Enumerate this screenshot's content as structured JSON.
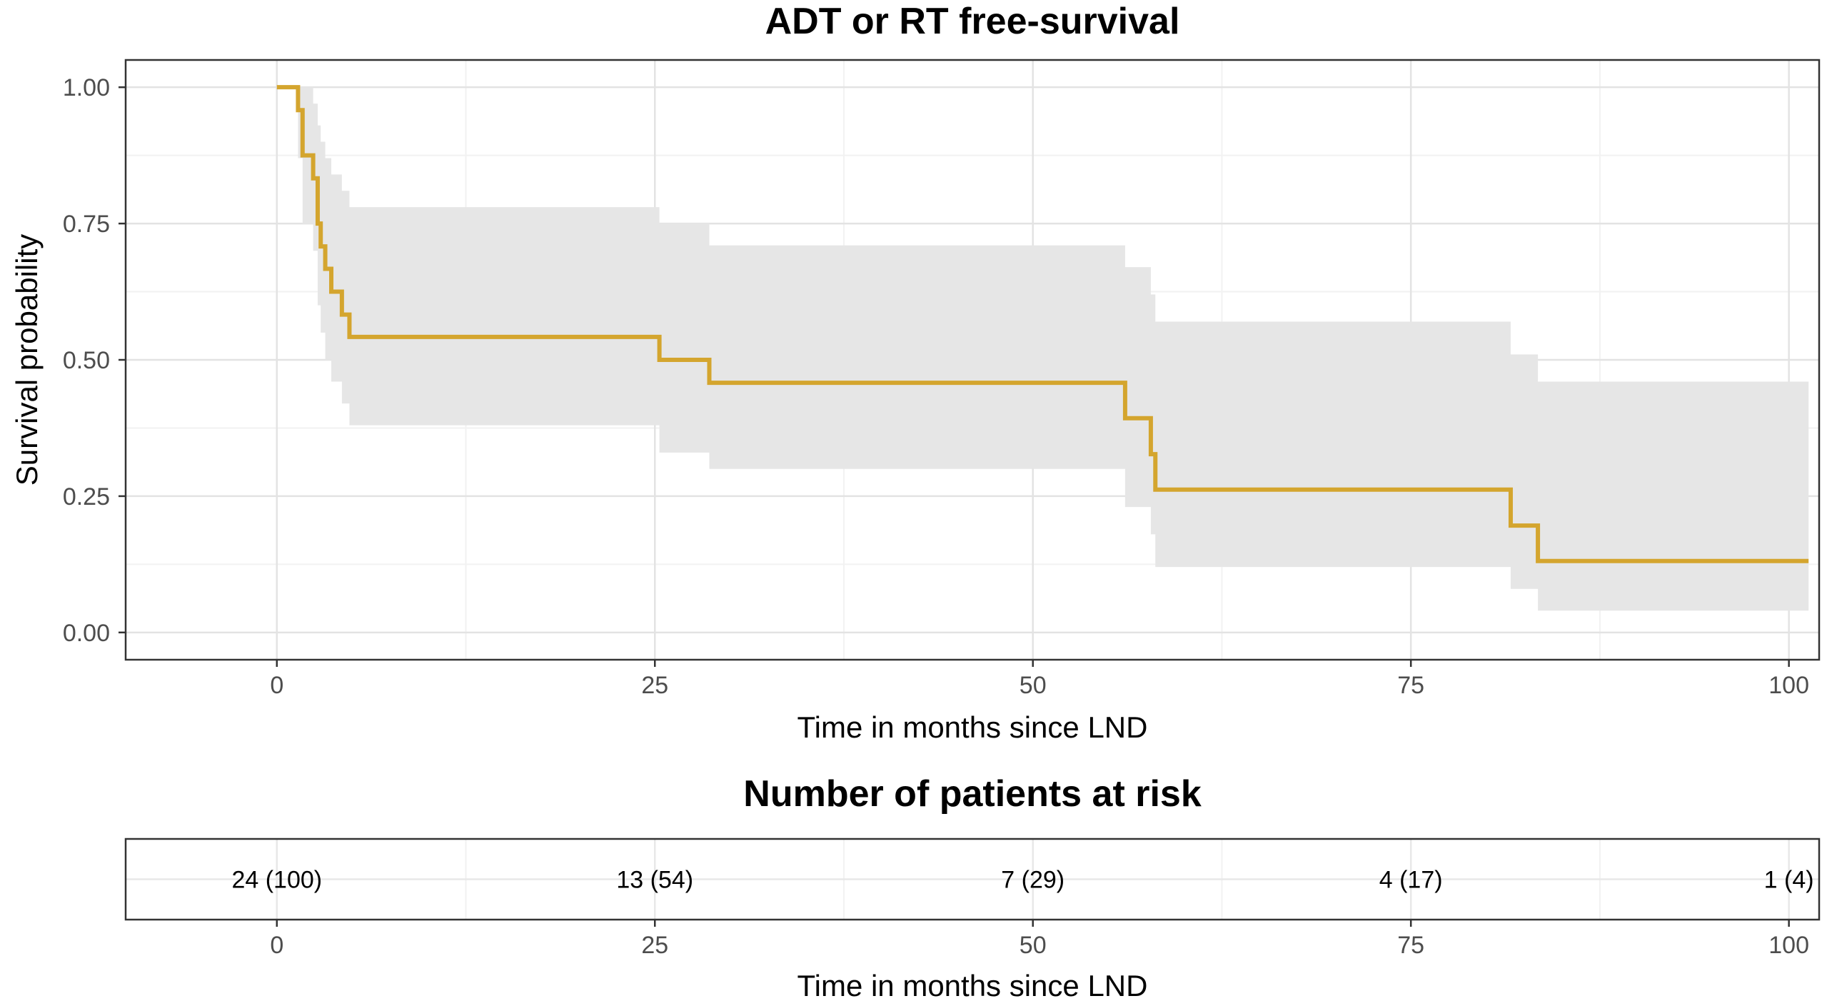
{
  "chart_data": [
    {
      "type": "line",
      "subtype": "kaplan-meier-step",
      "title": "ADT or RT free-survival",
      "xlabel": "Time in months since LND",
      "ylabel": "Survival probability",
      "xlim": [
        -10,
        102
      ],
      "ylim": [
        -0.05,
        1.05
      ],
      "x_ticks": [
        0,
        25,
        50,
        75,
        100
      ],
      "x_tick_labels": [
        "0",
        "25",
        "50",
        "75",
        "100"
      ],
      "y_ticks": [
        0,
        0.25,
        0.5,
        0.75,
        1.0
      ],
      "y_tick_labels": [
        "0.00",
        "0.25",
        "0.50",
        "0.75",
        "1.00"
      ],
      "grid": true,
      "series": [
        {
          "name": "ADT or RT free-survival",
          "color": "#d4a52e",
          "x": [
            0,
            1.4,
            1.7,
            2.4,
            2.7,
            2.9,
            3.2,
            3.6,
            4.3,
            4.8,
            25.3,
            28.6,
            56.1,
            57.8,
            58.1,
            81.6,
            83.4,
            101.3
          ],
          "y": [
            1.0,
            0.958,
            0.875,
            0.833,
            0.75,
            0.708,
            0.667,
            0.625,
            0.583,
            0.542,
            0.5,
            0.458,
            0.393,
            0.327,
            0.262,
            0.196,
            0.131,
            0.131
          ]
        }
      ],
      "confidence_band": {
        "color": "#e6e6e6",
        "x": [
          0,
          1.4,
          1.7,
          2.4,
          2.7,
          2.9,
          3.2,
          3.6,
          4.3,
          4.8,
          25.3,
          28.6,
          56.1,
          57.8,
          58.1,
          81.6,
          83.4,
          101.3
        ],
        "lower": [
          1.0,
          0.87,
          0.75,
          0.7,
          0.6,
          0.55,
          0.5,
          0.46,
          0.42,
          0.38,
          0.33,
          0.3,
          0.23,
          0.18,
          0.12,
          0.08,
          0.04,
          0.04
        ],
        "upper": [
          1.0,
          1.0,
          1.0,
          0.97,
          0.93,
          0.9,
          0.87,
          0.84,
          0.81,
          0.78,
          0.75,
          0.71,
          0.67,
          0.62,
          0.57,
          0.51,
          0.46,
          0.46
        ]
      }
    },
    {
      "type": "table",
      "title": "Number of patients at risk",
      "xlabel": "Time in months since LND",
      "xlim": [
        -10,
        102
      ],
      "x_ticks": [
        0,
        25,
        50,
        75,
        100
      ],
      "x_tick_labels": [
        "0",
        "25",
        "50",
        "75",
        "100"
      ],
      "x": [
        0,
        25,
        50,
        75,
        100
      ],
      "labels": [
        "24 (100)",
        "13 (54)",
        "7 (29)",
        "4 (17)",
        "1 (4)"
      ],
      "values": [
        24,
        13,
        7,
        4,
        1
      ],
      "percent": [
        100,
        54,
        29,
        17,
        4
      ]
    }
  ]
}
